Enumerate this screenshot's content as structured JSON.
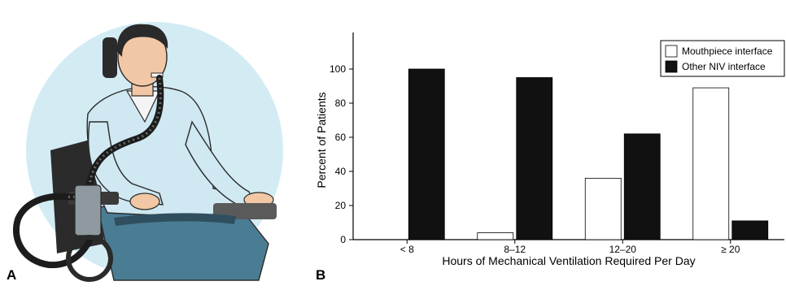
{
  "panel_labels": {
    "a": "A",
    "b": "B"
  },
  "illustration": {
    "subject": "person-in-wheelchair-using-mouthpiece-ventilation",
    "background_color": "#d3ecf4",
    "shirt_color": "#cfe8f2",
    "pants_color": "#4a7d94",
    "tube_color": "#1c1c1c"
  },
  "chart_data": {
    "type": "bar",
    "categories": [
      "< 8",
      "8–12",
      "12–20",
      "≥ 20"
    ],
    "series": [
      {
        "name": "Mouthpiece interface",
        "values": [
          0,
          4,
          36,
          89
        ],
        "color": "#ffffff"
      },
      {
        "name": "Other NIV interface",
        "values": [
          100,
          95,
          62,
          11
        ],
        "color": "#111111"
      }
    ],
    "xlabel": "Hours of Mechanical Ventilation Required Per Day",
    "ylabel": "Percent of Patients",
    "ylim": [
      0,
      100
    ],
    "yticks": [
      0,
      20,
      40,
      60,
      80,
      100
    ],
    "legend_position": "top-right",
    "grid": false
  }
}
